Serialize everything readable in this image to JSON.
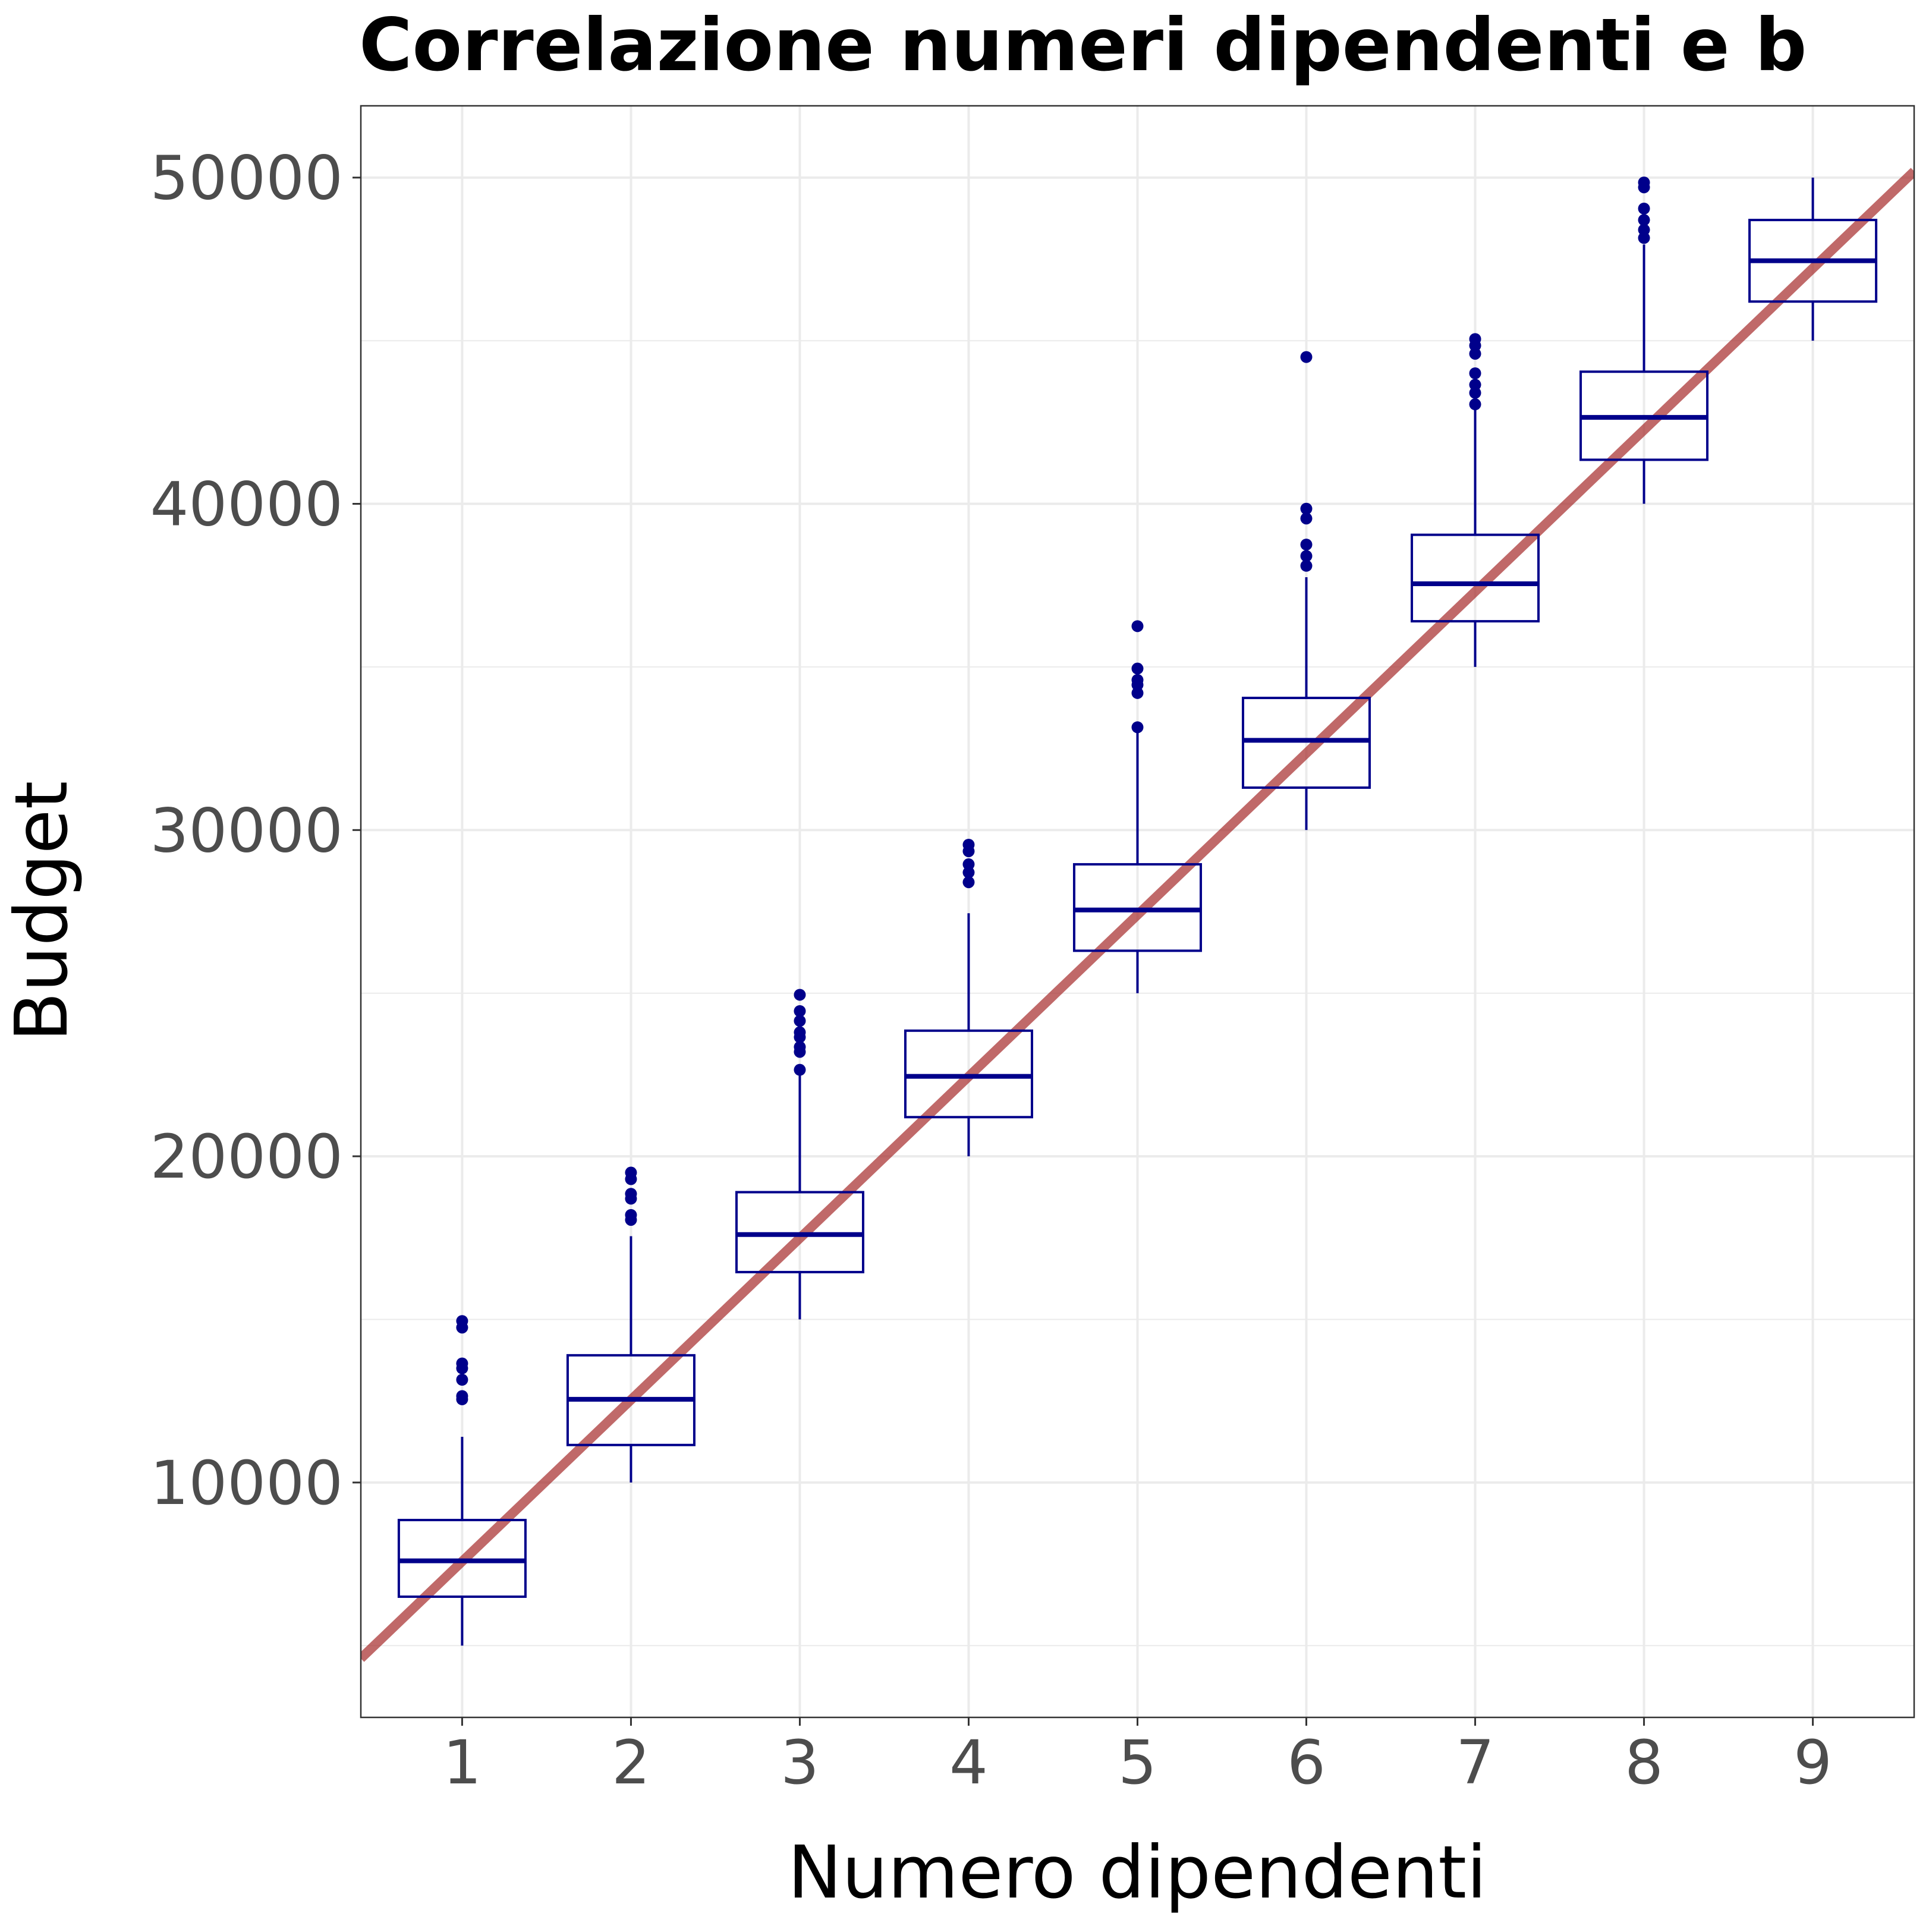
{
  "chart_data": {
    "type": "boxplot",
    "title": "Correlazione numeri dipendenti e b",
    "xlabel": "Numero dipendenti",
    "ylabel": "Budget",
    "categories": [
      "1",
      "2",
      "3",
      "4",
      "5",
      "6",
      "7",
      "8",
      "9"
    ],
    "xlim": [
      0.4,
      9.6
    ],
    "ylim": [
      2800,
      52200
    ],
    "yticks": [
      10000,
      20000,
      30000,
      40000,
      50000
    ],
    "ytick_labels": [
      "10000",
      "20000",
      "30000",
      "40000",
      "50000"
    ],
    "grid": true,
    "boxes": [
      {
        "x": 1,
        "whisker_low": 5000,
        "q1": 6500,
        "median": 7600,
        "q3": 8850,
        "whisker_high": 11400,
        "outliers": [
          12550,
          12650,
          13150,
          13500,
          13650,
          14750,
          14950
        ]
      },
      {
        "x": 2,
        "whisker_low": 10000,
        "q1": 11150,
        "median": 12550,
        "q3": 13900,
        "whisker_high": 17550,
        "outliers": [
          18050,
          18200,
          18700,
          18850,
          19300,
          19500
        ]
      },
      {
        "x": 3,
        "whisker_low": 15000,
        "q1": 16450,
        "median": 17600,
        "q3": 18900,
        "whisker_high": 22550,
        "outliers": [
          22650,
          23200,
          23350,
          23650,
          23800,
          24150,
          24450,
          24950
        ]
      },
      {
        "x": 4,
        "whisker_low": 20000,
        "q1": 21200,
        "median": 22450,
        "q3": 23850,
        "whisker_high": 27450,
        "outliers": [
          28400,
          28700,
          28950,
          29350,
          29550
        ]
      },
      {
        "x": 5,
        "whisker_low": 25000,
        "q1": 26300,
        "median": 27550,
        "q3": 28950,
        "whisker_high": 33050,
        "outliers": [
          33150,
          34200,
          34450,
          34600,
          34950,
          36250
        ]
      },
      {
        "x": 6,
        "whisker_low": 30000,
        "q1": 31300,
        "median": 32750,
        "q3": 34050,
        "whisker_high": 37750,
        "outliers": [
          38100,
          38400,
          38750,
          39550,
          39850,
          44500
        ]
      },
      {
        "x": 7,
        "whisker_low": 35000,
        "q1": 36400,
        "median": 37550,
        "q3": 39050,
        "whisker_high": 42950,
        "outliers": [
          43050,
          43400,
          43650,
          44000,
          44600,
          44850,
          45050
        ]
      },
      {
        "x": 8,
        "whisker_low": 40000,
        "q1": 41350,
        "median": 42650,
        "q3": 44050,
        "whisker_high": 47950,
        "outliers": [
          48150,
          48400,
          48700,
          49050,
          49700,
          49850
        ]
      },
      {
        "x": 9,
        "whisker_low": 45000,
        "q1": 46200,
        "median": 47450,
        "q3": 48700,
        "whisker_high": 50000,
        "outliers": []
      }
    ],
    "trend_line": {
      "intercept": 2625,
      "slope": 4955
    },
    "colors": {
      "box": "#00008B",
      "trend": "#A52A2A",
      "grid": "#EBEBEB",
      "panel_border": "#333333",
      "tick_text": "#4D4D4D",
      "title_text": "#000000"
    }
  }
}
